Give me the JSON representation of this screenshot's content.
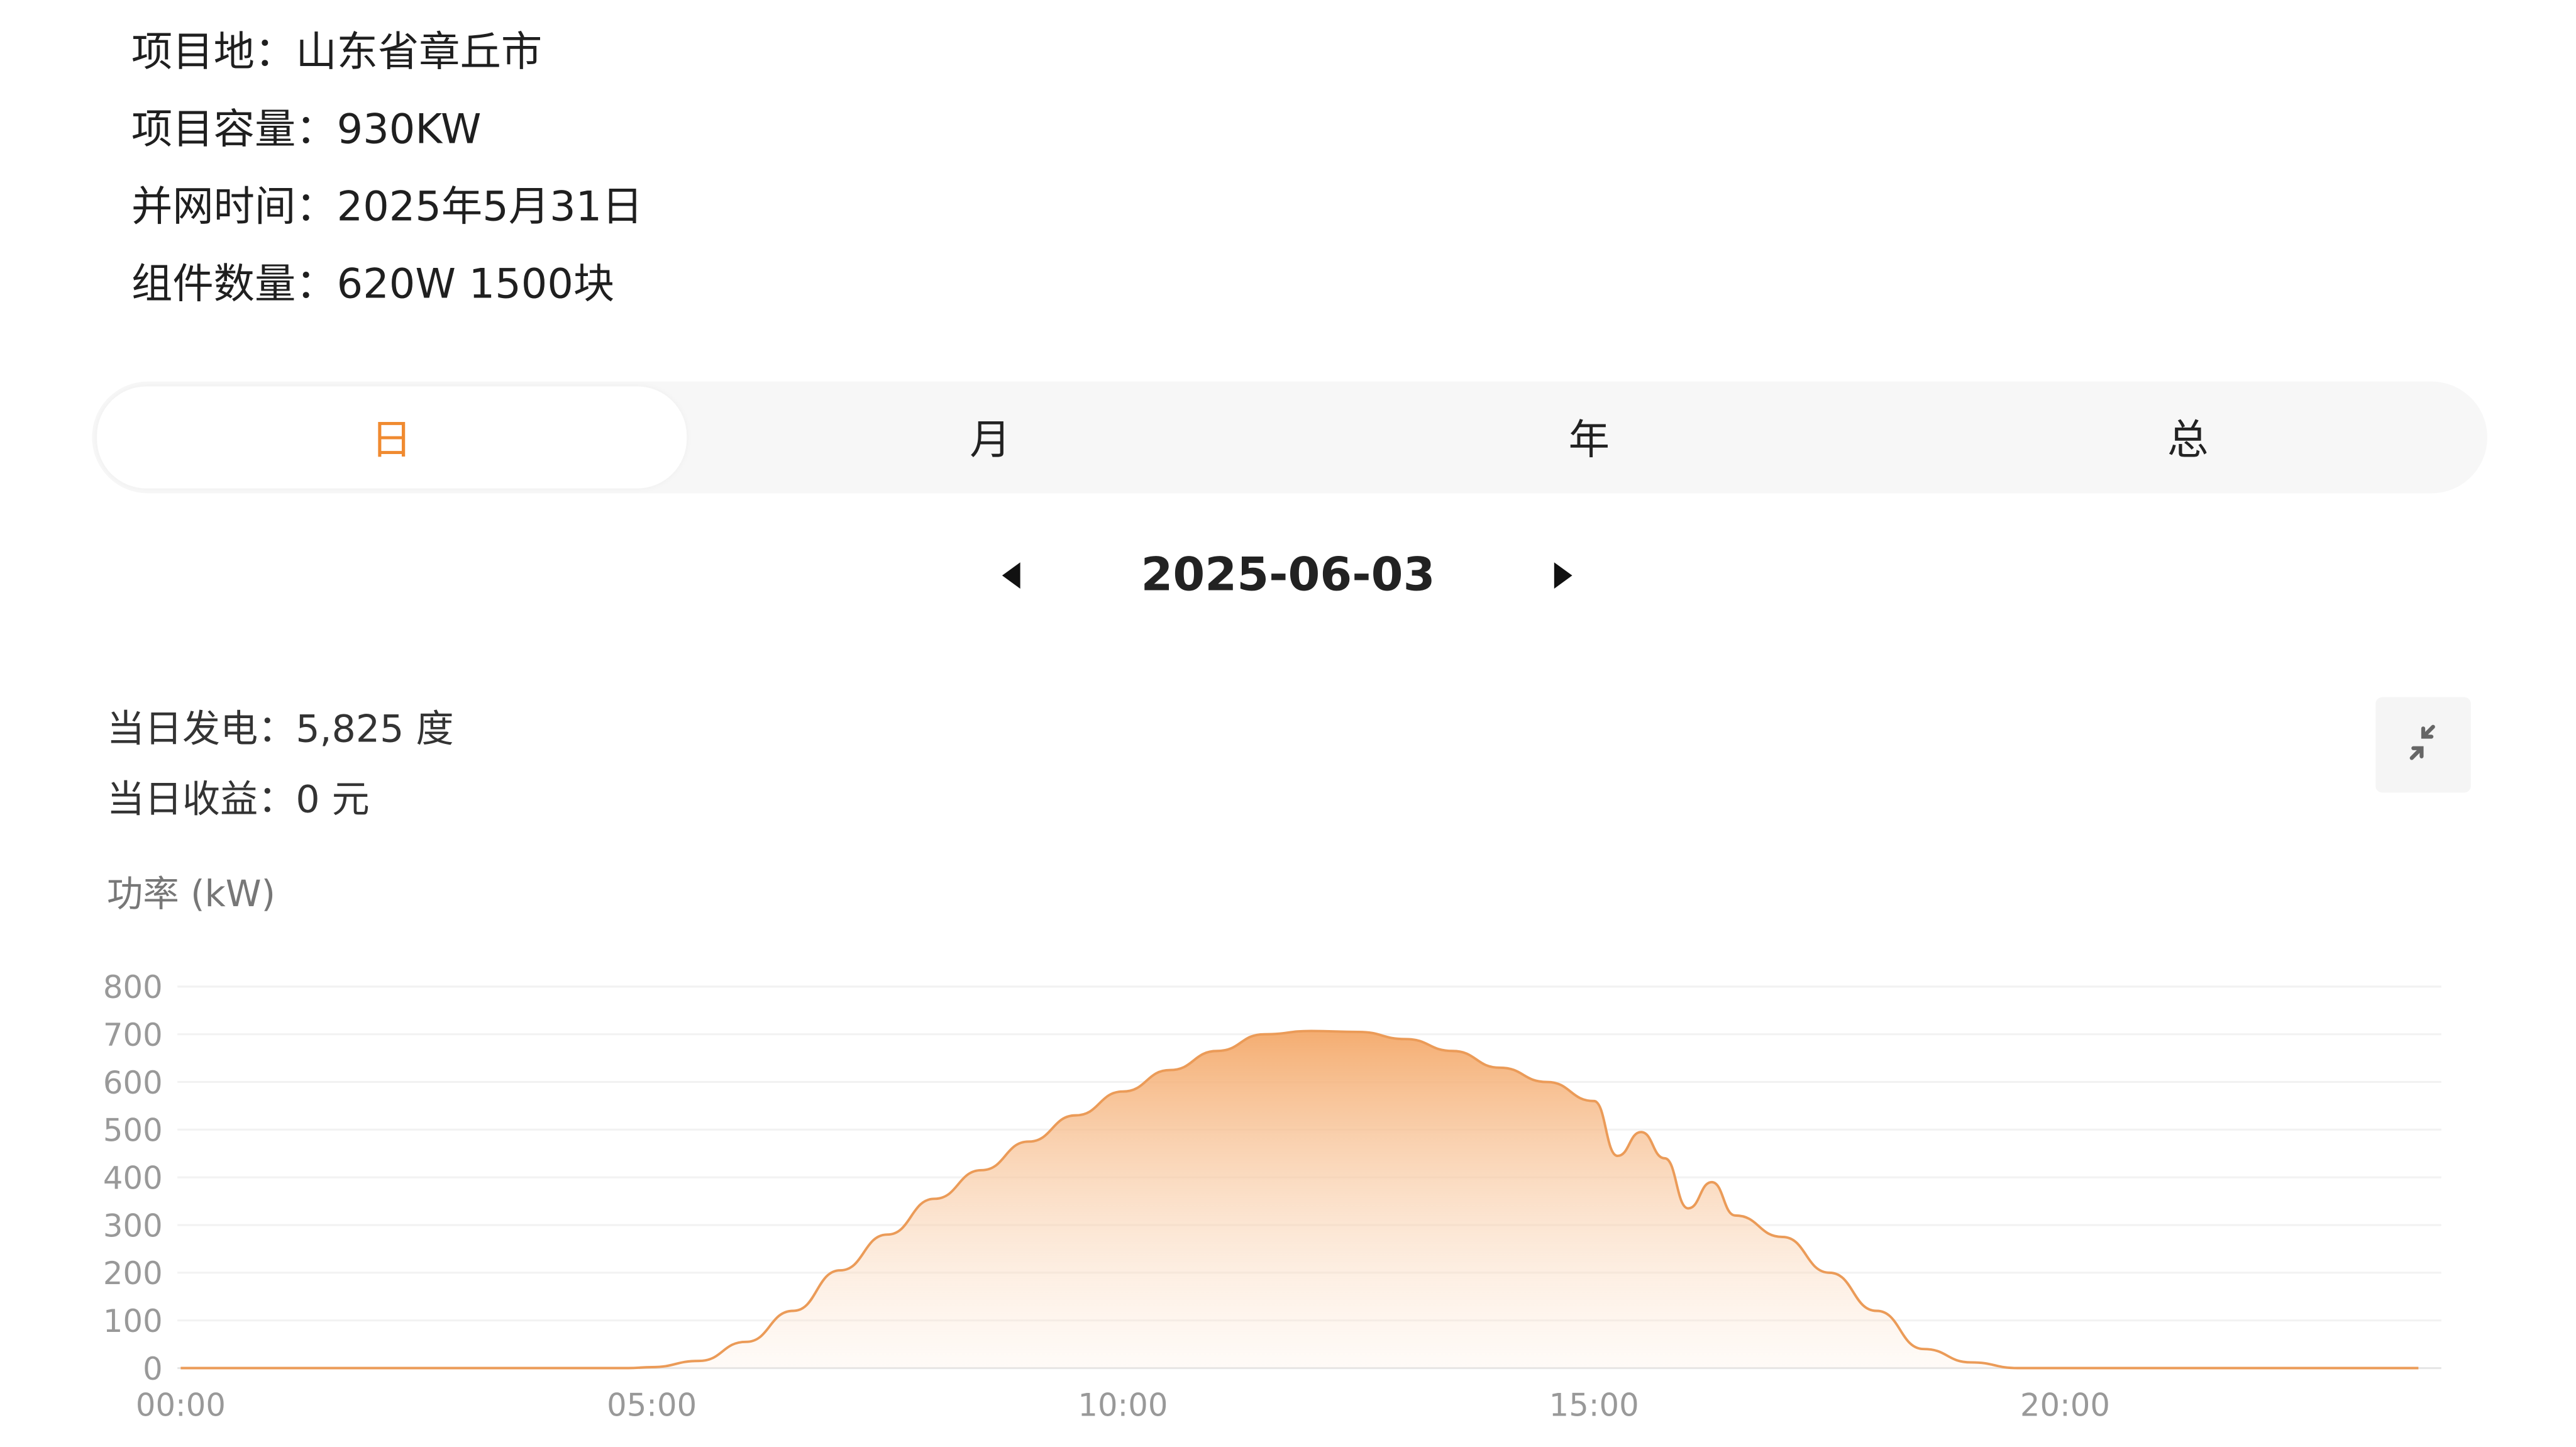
{
  "project": {
    "location": "项目地：山东省章丘市",
    "capacity": "项目容量：930KW",
    "grid_date": "并网时间：2025年5月31日",
    "modules": "组件数量：620W 1500块"
  },
  "tabs": [
    {
      "label": "日",
      "active": true
    },
    {
      "label": "月",
      "active": false
    },
    {
      "label": "年",
      "active": false
    },
    {
      "label": "总",
      "active": false
    }
  ],
  "date_nav": {
    "date": "2025-06-03",
    "prev_icon": "triangle-left-icon",
    "next_icon": "triangle-right-icon"
  },
  "stats": {
    "generation": "当日发电：5,825 度",
    "revenue": "当日收益：0 元"
  },
  "collapse_icon": "collapse-arrows-icon",
  "colors": {
    "accent": "#f08a30",
    "line": "#eb9b58",
    "fill_top": "#f4a96a"
  },
  "chart_data": {
    "type": "area",
    "ylabel": "功率 (kW)",
    "ylim": [
      0,
      800
    ],
    "yticks": [
      "0",
      "100",
      "200",
      "300",
      "400",
      "500",
      "600",
      "700",
      "800"
    ],
    "xticks": [
      "00:00",
      "05:00",
      "10:00",
      "15:00",
      "20:00"
    ],
    "grid": true,
    "x": [
      "00:00",
      "04:45",
      "05:00",
      "05:30",
      "06:00",
      "06:30",
      "07:00",
      "07:30",
      "08:00",
      "08:30",
      "09:00",
      "09:30",
      "10:00",
      "10:30",
      "11:00",
      "11:30",
      "12:00",
      "12:30",
      "13:00",
      "13:30",
      "14:00",
      "14:30",
      "15:00",
      "15:15",
      "15:30",
      "15:45",
      "16:00",
      "16:15",
      "16:30",
      "17:00",
      "17:30",
      "18:00",
      "18:30",
      "19:00",
      "19:30",
      "20:00",
      "23:45"
    ],
    "values": [
      0,
      0,
      2,
      15,
      55,
      120,
      205,
      280,
      355,
      415,
      475,
      530,
      580,
      625,
      665,
      700,
      707,
      705,
      690,
      665,
      630,
      600,
      560,
      445,
      495,
      440,
      335,
      390,
      320,
      275,
      200,
      120,
      40,
      12,
      0,
      0,
      0
    ]
  }
}
